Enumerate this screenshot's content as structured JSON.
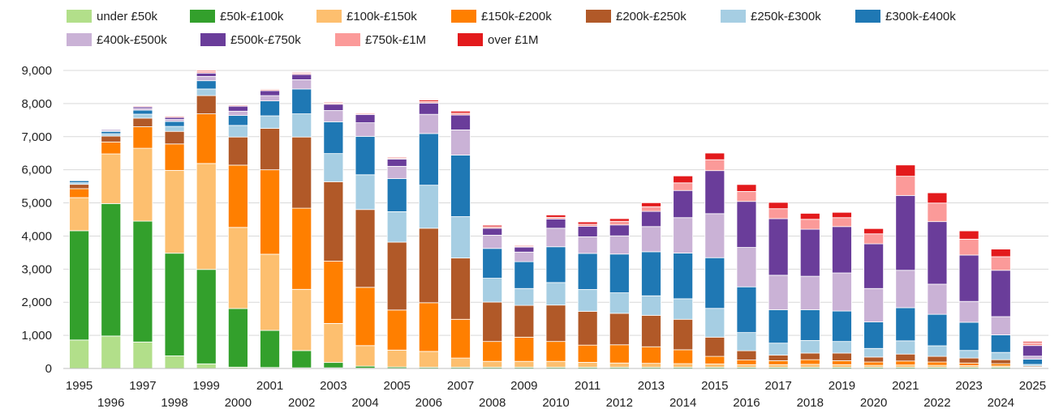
{
  "chart_data": {
    "type": "bar",
    "stacked": true,
    "title": "",
    "xlabel": "",
    "ylabel": "",
    "ylim": [
      0,
      9000
    ],
    "yticks": [
      0,
      1000,
      2000,
      3000,
      4000,
      5000,
      6000,
      7000,
      8000,
      9000
    ],
    "ytick_labels": [
      "0",
      "1,000",
      "2,000",
      "3,000",
      "4,000",
      "5,000",
      "6,000",
      "7,000",
      "8,000",
      "9,000"
    ],
    "grid": true,
    "legend_position": "top",
    "categories": [
      "1995",
      "1996",
      "1997",
      "1998",
      "1999",
      "2000",
      "2001",
      "2002",
      "2003",
      "2004",
      "2005",
      "2006",
      "2007",
      "2008",
      "2009",
      "2010",
      "2011",
      "2012",
      "2013",
      "2014",
      "2015",
      "2016",
      "2017",
      "2018",
      "2019",
      "2020",
      "2021",
      "2022",
      "2023",
      "2024",
      "2025"
    ],
    "series": [
      {
        "name": "under £50k",
        "color": "#b2df8a",
        "values": [
          860,
          980,
          800,
          380,
          140,
          40,
          30,
          20,
          20,
          10,
          5,
          5,
          5,
          5,
          5,
          5,
          5,
          5,
          5,
          5,
          5,
          5,
          5,
          5,
          5,
          5,
          5,
          5,
          5,
          5,
          2
        ]
      },
      {
        "name": "£50k-£100k",
        "color": "#33a02c",
        "values": [
          3300,
          4000,
          3650,
          3100,
          2850,
          1770,
          1120,
          520,
          160,
          60,
          40,
          30,
          30,
          30,
          30,
          30,
          30,
          30,
          30,
          30,
          30,
          30,
          30,
          30,
          30,
          30,
          30,
          30,
          30,
          30,
          10
        ]
      },
      {
        "name": "£100k-£150k",
        "color": "#fdbf6f",
        "values": [
          1000,
          1500,
          2200,
          2500,
          3200,
          2450,
          2300,
          1850,
          1180,
          620,
          510,
          480,
          280,
          180,
          180,
          180,
          150,
          130,
          120,
          110,
          100,
          80,
          80,
          90,
          80,
          60,
          70,
          60,
          50,
          40,
          10
        ]
      },
      {
        "name": "£150k-£200k",
        "color": "#ff7f00",
        "values": [
          270,
          360,
          650,
          800,
          1500,
          1880,
          2550,
          2450,
          1880,
          1760,
          1210,
          1470,
          1170,
          600,
          730,
          600,
          520,
          550,
          500,
          420,
          230,
          140,
          120,
          140,
          120,
          100,
          120,
          100,
          80,
          70,
          20
        ]
      },
      {
        "name": "£200k-£250k",
        "color": "#b15928",
        "values": [
          130,
          180,
          260,
          380,
          550,
          850,
          1250,
          2150,
          2400,
          2350,
          2050,
          2250,
          1850,
          1190,
          960,
          1100,
          1020,
          950,
          950,
          920,
          580,
          280,
          170,
          200,
          230,
          150,
          210,
          170,
          150,
          120,
          30
        ]
      },
      {
        "name": "£250k-£300k",
        "color": "#a6cee3",
        "values": [
          50,
          70,
          120,
          150,
          200,
          350,
          380,
          700,
          850,
          1050,
          920,
          1300,
          1250,
          720,
          510,
          680,
          660,
          620,
          590,
          620,
          870,
          550,
          360,
          380,
          350,
          260,
          400,
          320,
          230,
          220,
          50
        ]
      },
      {
        "name": "£300k-£400k",
        "color": "#1f78b4",
        "values": [
          60,
          70,
          120,
          150,
          250,
          300,
          450,
          750,
          960,
          1160,
          1000,
          1560,
          1860,
          900,
          810,
          1080,
          1090,
          1170,
          1330,
          1380,
          1530,
          1380,
          1010,
          930,
          920,
          800,
          1000,
          950,
          850,
          530,
          160
        ]
      },
      {
        "name": "£400k-£500k",
        "color": "#cab2d6",
        "values": [
          20,
          30,
          50,
          60,
          130,
          130,
          160,
          280,
          340,
          410,
          370,
          580,
          760,
          400,
          290,
          560,
          500,
          550,
          760,
          1070,
          1330,
          1190,
          1040,
          1010,
          1150,
          1010,
          1130,
          910,
          630,
          550,
          90
        ]
      },
      {
        "name": "£500k-£750k",
        "color": "#6a3d9a",
        "values": [
          20,
          30,
          50,
          60,
          100,
          150,
          150,
          160,
          190,
          250,
          220,
          340,
          450,
          210,
          150,
          280,
          320,
          330,
          460,
          820,
          1300,
          1390,
          1710,
          1420,
          1400,
          1350,
          2260,
          1890,
          1400,
          1400,
          320
        ]
      },
      {
        "name": "£750k-£1M",
        "color": "#fb9a99",
        "values": [
          15,
          20,
          30,
          40,
          50,
          35,
          40,
          35,
          35,
          35,
          30,
          45,
          55,
          45,
          25,
          50,
          60,
          110,
          140,
          230,
          330,
          300,
          300,
          300,
          270,
          300,
          580,
          560,
          480,
          410,
          80
        ]
      },
      {
        "name": "over £1M",
        "color": "#e31a1c",
        "values": [
          15,
          20,
          20,
          20,
          30,
          15,
          20,
          25,
          25,
          20,
          25,
          45,
          60,
          45,
          25,
          70,
          70,
          80,
          120,
          210,
          200,
          210,
          190,
          180,
          160,
          160,
          340,
          310,
          250,
          230,
          40
        ]
      }
    ]
  }
}
